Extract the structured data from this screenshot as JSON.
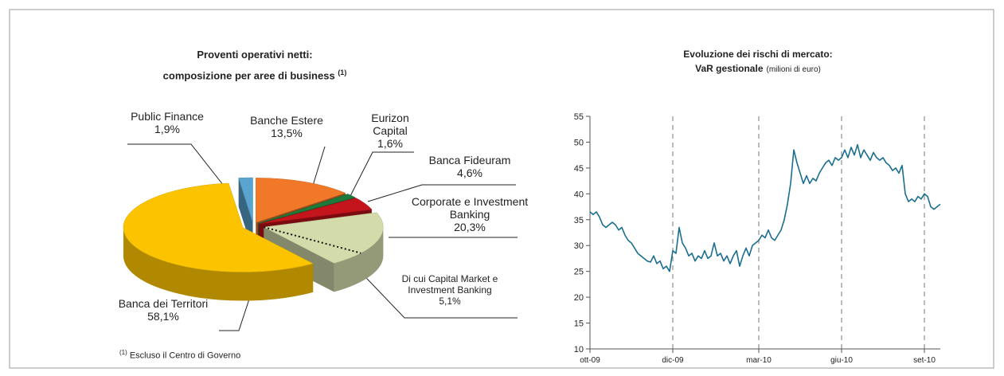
{
  "chart_data": [
    {
      "type": "pie",
      "title": [
        "Proventi operativi netti:",
        "composizione per aree di business"
      ],
      "title_note": "(1)",
      "categories": [
        "Banche Estere",
        "Eurizon Capital",
        "Banca Fideuram",
        "Corporate e Investment Banking",
        "Banca dei Territori",
        "Public Finance"
      ],
      "values": [
        13.5,
        1.6,
        4.6,
        20.3,
        58.1,
        1.9
      ],
      "value_labels": [
        "13,5%",
        "1,6%",
        "4,6%",
        "20,3%",
        "58,1%",
        "1,9%"
      ],
      "colors": [
        "#f07828",
        "#1d7a3a",
        "#c4141c",
        "#d3dbab",
        "#fcc400",
        "#5aa5d0"
      ],
      "sub_segment": {
        "name": "Di cui Capital Market e Investment Banking",
        "value": 5.1,
        "value_label": "5,1%"
      },
      "footnote": {
        "mark": "(1)",
        "text": "Escluso il Centro di Governo"
      }
    },
    {
      "type": "line",
      "title": "Evoluzione dei rischi di mercato:",
      "subtitle_bold": "VaR gestionale",
      "subtitle": "(milioni di euro)",
      "color": "#1a6e8e",
      "values": [
        36.5,
        36,
        36.5,
        35.5,
        34,
        33.5,
        34,
        34.5,
        34,
        33,
        33.5,
        32,
        31,
        30.5,
        29.5,
        28.5,
        28,
        27.5,
        27,
        26.8,
        28,
        26.5,
        27,
        25.5,
        26,
        25,
        29,
        28.5,
        33.5,
        30.5,
        29.5,
        28,
        28.5,
        27,
        28,
        27.5,
        29,
        27.5,
        28,
        30.5,
        28,
        28.5,
        27,
        28,
        26.5,
        28,
        29,
        26,
        28,
        29.5,
        28,
        30,
        30.5,
        31,
        32,
        31.5,
        33,
        31.5,
        31,
        32,
        33,
        35,
        38,
        42,
        48.5,
        46,
        44,
        42,
        43.5,
        42,
        43,
        42.5,
        44,
        45,
        46,
        46.5,
        45.5,
        47,
        46.5,
        47,
        48.5,
        47,
        49,
        47.5,
        49.5,
        47,
        48.5,
        47.5,
        46.5,
        48,
        47,
        46.5,
        47,
        46,
        45.5,
        44.5,
        45,
        44,
        45.5,
        40,
        38.5,
        39,
        38.5,
        39.5,
        39,
        40,
        39.5,
        37.5,
        37,
        37.5,
        38
      ],
      "xlim": [
        0,
        110
      ],
      "xticks": [
        {
          "value": 0,
          "label": "ott-09"
        },
        {
          "value": 26,
          "label": "dic-09"
        },
        {
          "value": 53,
          "label": "mar-10"
        },
        {
          "value": 79,
          "label": "giu-10"
        },
        {
          "value": 105,
          "label": "set-10"
        }
      ],
      "ylim": [
        10,
        55
      ],
      "yticks": [
        10,
        15,
        20,
        25,
        30,
        35,
        40,
        45,
        50,
        55
      ],
      "grid": "x-dashed"
    }
  ]
}
